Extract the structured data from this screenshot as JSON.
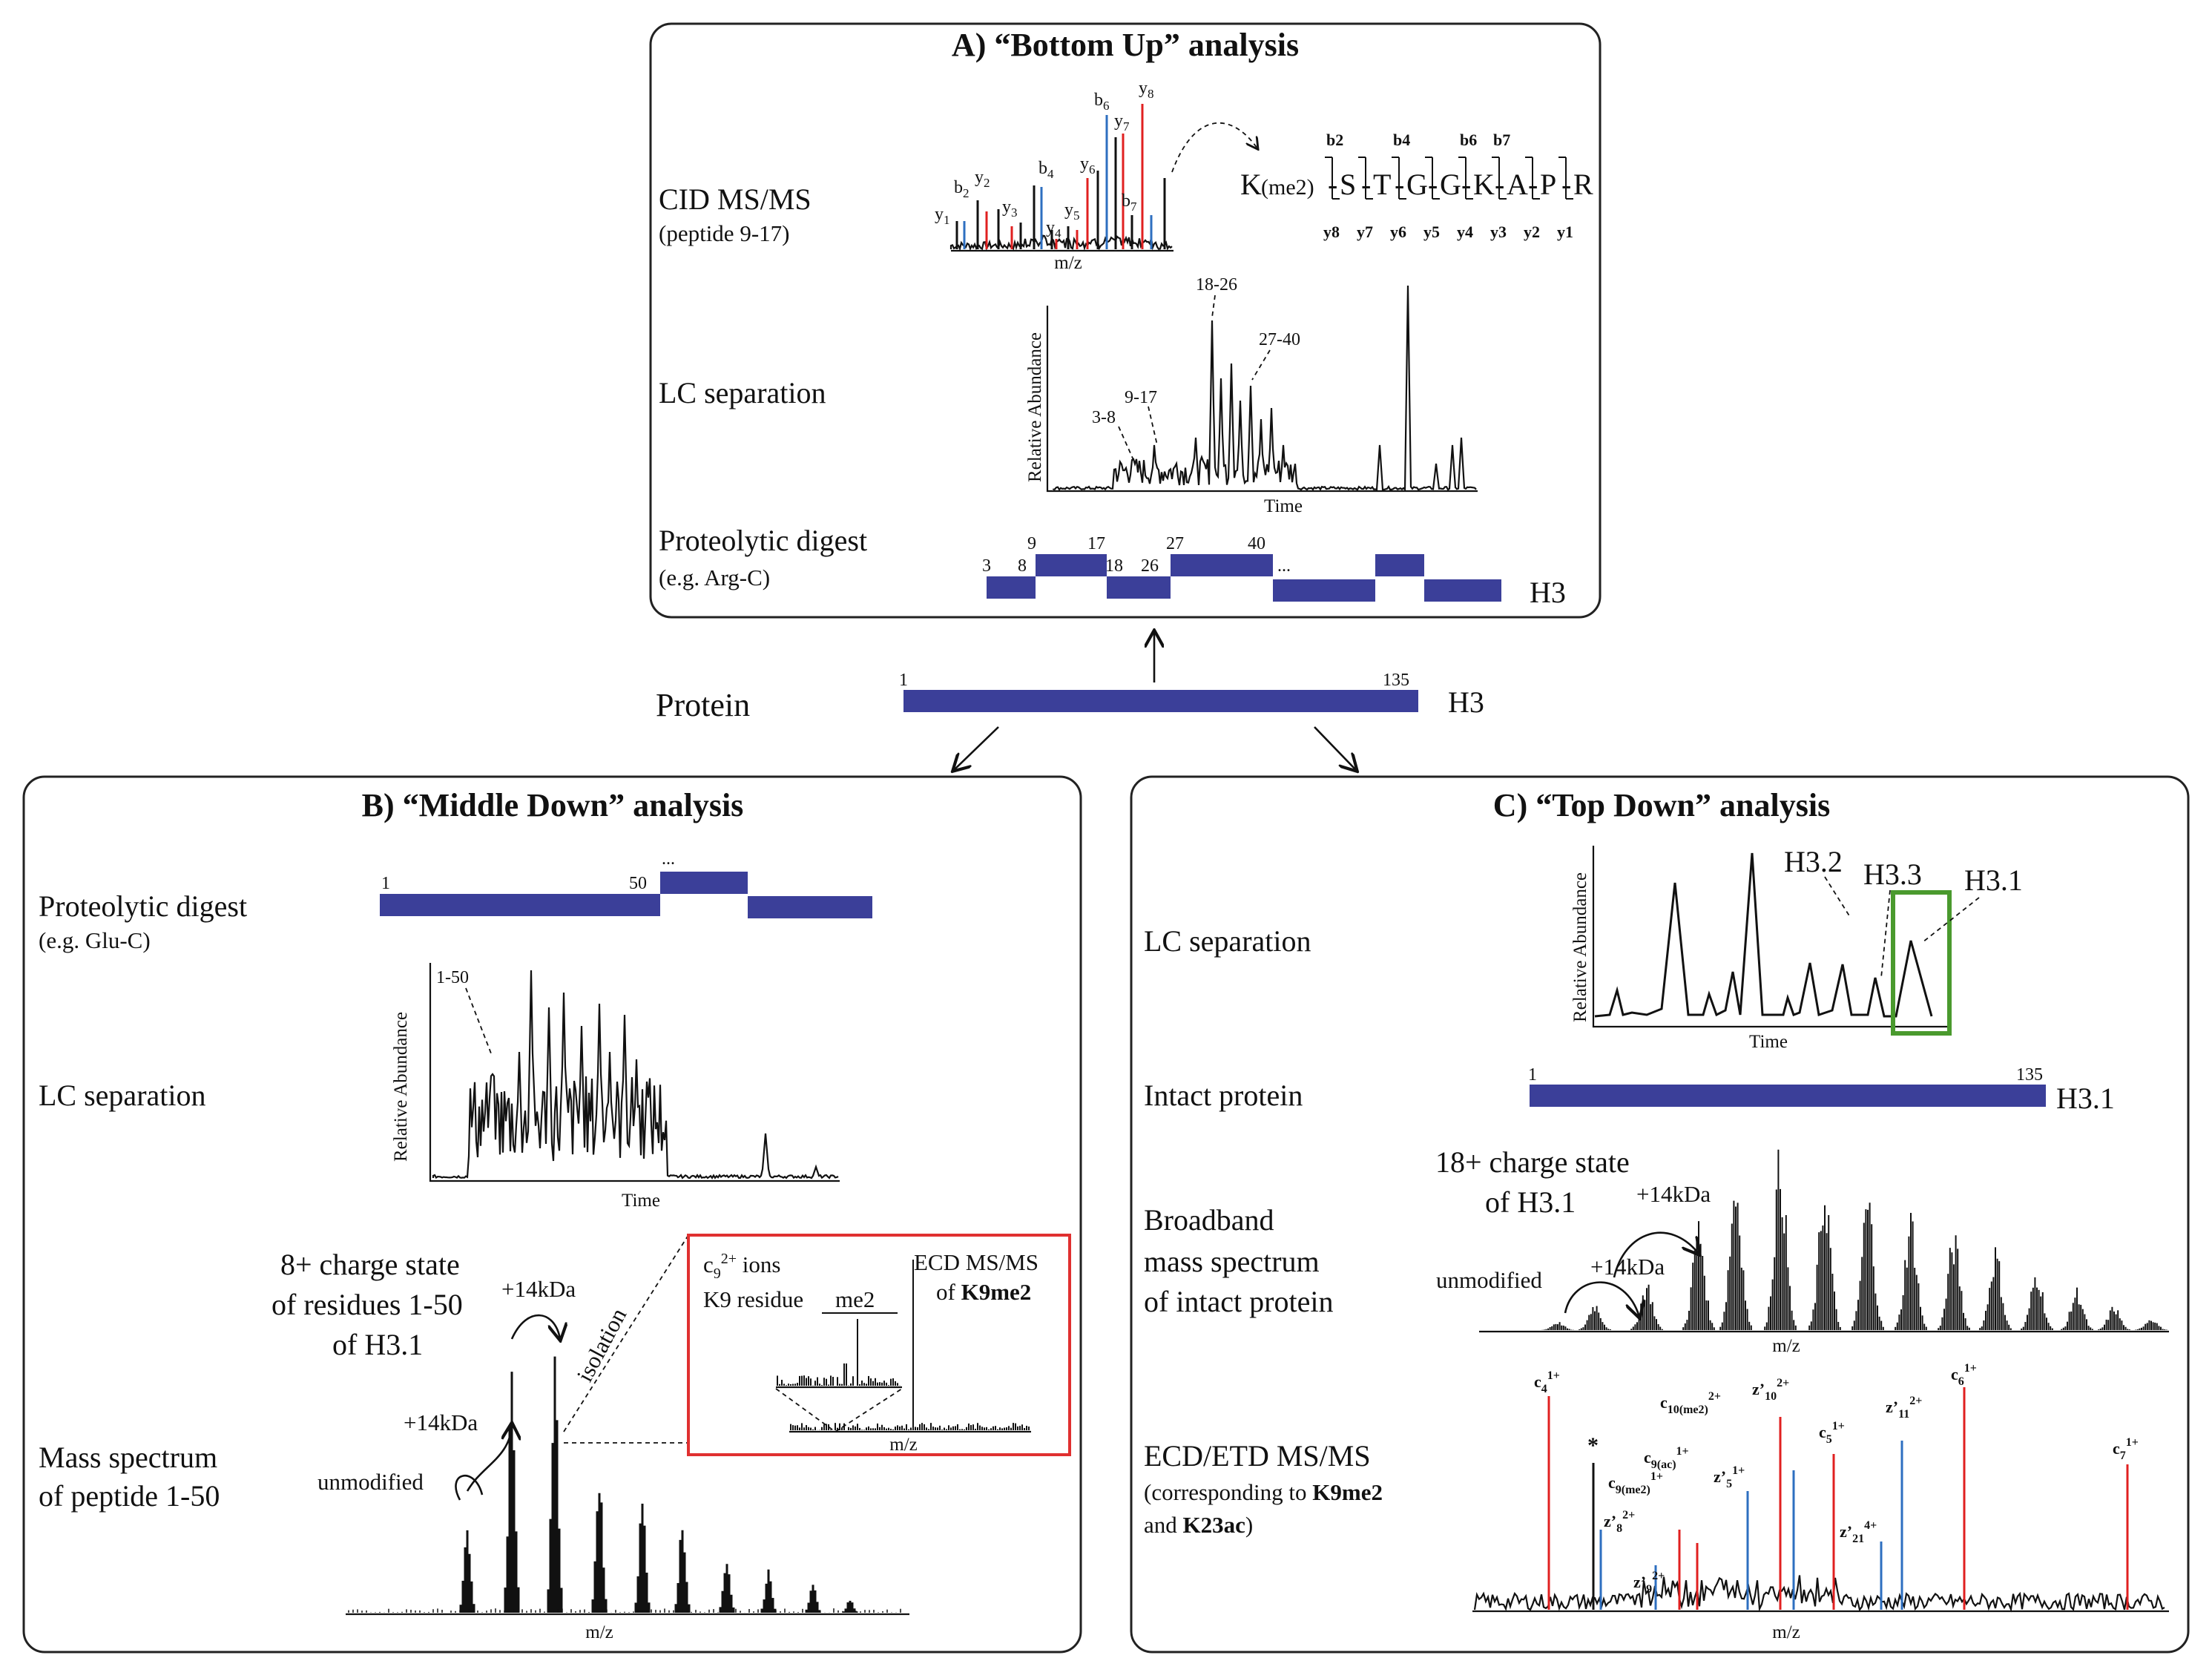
{
  "protein": {
    "label": "Protein",
    "start": "1",
    "end": "135",
    "name": "H3"
  },
  "panel_a": {
    "title": "A) “Bottom Up” analysis",
    "cid_label": "CID MS/MS",
    "cid_sub": "(peptide 9-17)",
    "lc_label": "LC separation",
    "digest_label": "Proteolytic digest",
    "digest_sub": "(e.g. Arg-C)",
    "sequence": "K(me2)-S-T-G-G-K-A-P-R",
    "seq_residue_first": "K",
    "seq_mod": "(me2)",
    "seq_residues": [
      "S",
      "T",
      "G",
      "G",
      "K",
      "A",
      "P",
      "R"
    ],
    "b_ions": [
      "b2",
      "b4",
      "b6",
      "b7"
    ],
    "y_ions": [
      "y8",
      "y7",
      "y6",
      "y5",
      "y4",
      "y3",
      "y2",
      "y1"
    ],
    "spectrum_ions": [
      "y1",
      "b2",
      "y2",
      "y3",
      "b4",
      "y4",
      "y5",
      "y6",
      "b6",
      "y7",
      "y8",
      "b7"
    ],
    "mz_label": "m/z",
    "ylabel": "Relative Abundance",
    "xlabel": "Time",
    "peak_labels": [
      "3-8",
      "9-17",
      "18-26",
      "27-40"
    ],
    "digest_numbers": [
      "3",
      "8",
      "9",
      "17",
      "18",
      "26",
      "27",
      "40",
      "..."
    ],
    "digest_name": "H3"
  },
  "panel_b": {
    "title": "B) “Middle Down” analysis",
    "digest_label": "Proteolytic digest",
    "digest_sub": "(e.g. Glu-C)",
    "digest_start": "1",
    "digest_mid": "50",
    "digest_dots": "...",
    "lc_label": "LC separation",
    "lc_peak": "1-50",
    "ylabel": "Relative Abundance",
    "xlabel": "Time",
    "ms_label_1": "Mass spectrum",
    "ms_label_2": "of peptide 1-50",
    "charge_1": "8+ charge state",
    "charge_2": "of residues 1-50",
    "charge_3": "of H3.1",
    "plus14_a": "+14kDa",
    "plus14_b": "+14kDa",
    "isolation": "isolation",
    "unmodified": "unmodified",
    "mz_label": "m/z",
    "inset_ion": "c",
    "inset_ion_sub": "9",
    "inset_ion_sup": "2+",
    "inset_ion_rest": " ions",
    "inset_residue": "K9 residue",
    "inset_me2": "me2",
    "inset_title_1": "ECD MS/MS",
    "inset_title_2": "of ",
    "inset_title_bold": "K9me2",
    "inset_mz": "m/z"
  },
  "panel_c": {
    "title": "C) “Top Down” analysis",
    "lc_label": "LC separation",
    "lc_peaks": [
      "H3.2",
      "H3.3",
      "H3.1"
    ],
    "ylabel": "Relative Abundance",
    "xlabel": "Time",
    "intact_label": "Intact protein",
    "intact_start": "1",
    "intact_end": "135",
    "intact_name": "H3.1",
    "bb_label_1": "Broadband",
    "bb_label_2": "mass spectrum",
    "bb_label_3": "of intact protein",
    "charge_1": "18+ charge state",
    "charge_2": "of H3.1",
    "plus14_a": "+14kDa",
    "plus14_b": "+14kDa",
    "unmodified": "unmodified",
    "mz_label": "m/z",
    "ecd_label": "ECD/ETD MS/MS",
    "ecd_sub_1": "(corresponding to ",
    "ecd_sub_bold_1": "K9me2",
    "ecd_sub_2": "and ",
    "ecd_sub_bold_2": "K23ac",
    "ecd_sub_3": ")",
    "star": "*",
    "fragment_ions": [
      "c4 1+",
      "z’8 2+",
      "z’9 2+",
      "c9(me2) 1+",
      "c9(ac) 1+",
      "c10(me2) 2+",
      "z’5 1+",
      "z’10 2+",
      "c5 1+",
      "z’21 4+",
      "z’11 2+",
      "c6 1+",
      "c7 1+"
    ]
  },
  "colors": {
    "bar": "#3b3f99",
    "b_ion": "#2e6fc0",
    "y_ion": "#e02020",
    "inset_border": "#e03030",
    "highlight_box": "#4a9a2e"
  }
}
